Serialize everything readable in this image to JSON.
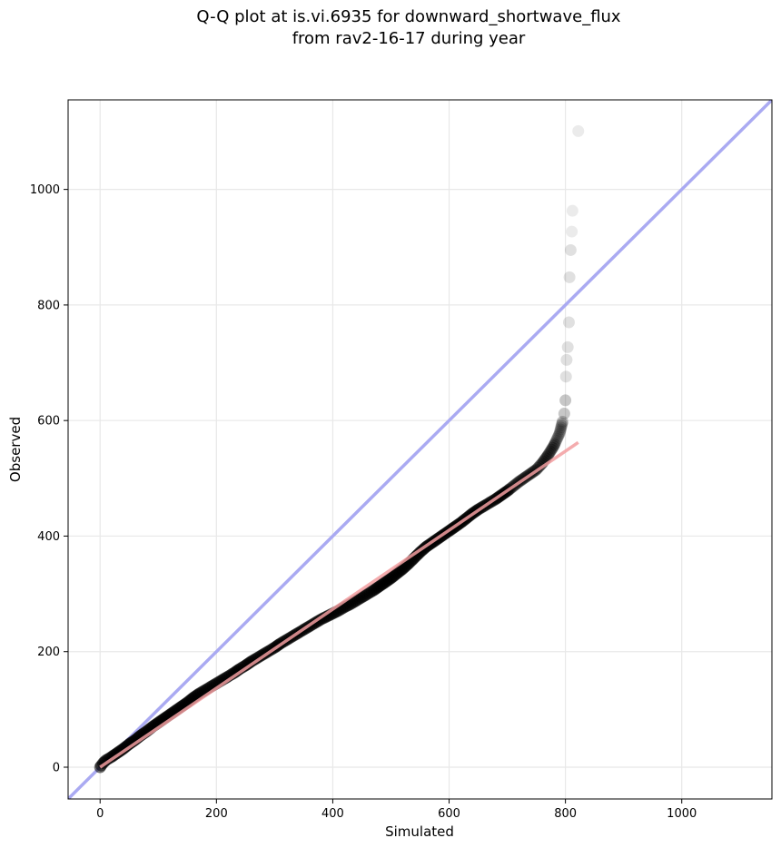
{
  "chart_data": {
    "type": "scatter",
    "title_line1": "Q-Q plot at is.vi.6935 for downward_shortwave_flux",
    "title_line2": "from rav2-16-17 during year",
    "xlabel": "Simulated",
    "ylabel": "Observed",
    "xlim": [
      -55,
      1155
    ],
    "ylim": [
      -55,
      1155
    ],
    "xticks": [
      0,
      200,
      400,
      600,
      800,
      1000
    ],
    "yticks": [
      0,
      200,
      400,
      600,
      800,
      1000
    ],
    "xtick_labels": [
      "0",
      "200",
      "400",
      "600",
      "800",
      "1000"
    ],
    "ytick_labels": [
      "0",
      "200",
      "400",
      "600",
      "800",
      "1000"
    ],
    "grid": true,
    "points": [
      [
        0,
        0
      ],
      [
        2,
        3
      ],
      [
        5,
        7
      ],
      [
        10,
        12
      ],
      [
        20,
        18
      ],
      [
        30,
        25
      ],
      [
        40,
        32
      ],
      [
        50,
        40
      ],
      [
        60,
        47
      ],
      [
        70,
        55
      ],
      [
        80,
        62
      ],
      [
        90,
        70
      ],
      [
        100,
        77
      ],
      [
        110,
        84
      ],
      [
        120,
        91
      ],
      [
        130,
        98
      ],
      [
        140,
        105
      ],
      [
        150,
        112
      ],
      [
        160,
        120
      ],
      [
        170,
        127
      ],
      [
        180,
        133
      ],
      [
        190,
        139
      ],
      [
        200,
        145
      ],
      [
        210,
        151
      ],
      [
        220,
        157
      ],
      [
        230,
        163
      ],
      [
        240,
        170
      ],
      [
        250,
        176
      ],
      [
        260,
        183
      ],
      [
        270,
        189
      ],
      [
        280,
        195
      ],
      [
        290,
        201
      ],
      [
        300,
        207
      ],
      [
        310,
        214
      ],
      [
        320,
        220
      ],
      [
        330,
        226
      ],
      [
        340,
        232
      ],
      [
        350,
        238
      ],
      [
        360,
        244
      ],
      [
        370,
        250
      ],
      [
        380,
        256
      ],
      [
        390,
        261
      ],
      [
        400,
        266
      ],
      [
        410,
        271
      ],
      [
        420,
        277
      ],
      [
        430,
        282
      ],
      [
        440,
        288
      ],
      [
        450,
        294
      ],
      [
        460,
        300
      ],
      [
        470,
        306
      ],
      [
        480,
        313
      ],
      [
        490,
        320
      ],
      [
        500,
        327
      ],
      [
        510,
        335
      ],
      [
        520,
        343
      ],
      [
        530,
        352
      ],
      [
        540,
        362
      ],
      [
        550,
        372
      ],
      [
        560,
        381
      ],
      [
        570,
        388
      ],
      [
        580,
        395
      ],
      [
        590,
        402
      ],
      [
        600,
        409
      ],
      [
        610,
        416
      ],
      [
        620,
        423
      ],
      [
        630,
        431
      ],
      [
        640,
        439
      ],
      [
        650,
        446
      ],
      [
        660,
        452
      ],
      [
        670,
        458
      ],
      [
        680,
        464
      ],
      [
        690,
        471
      ],
      [
        700,
        478
      ],
      [
        710,
        486
      ],
      [
        720,
        494
      ],
      [
        730,
        501
      ],
      [
        740,
        508
      ],
      [
        750,
        515
      ],
      [
        760,
        526
      ],
      [
        770,
        540
      ],
      [
        780,
        556
      ],
      [
        790,
        578
      ],
      [
        795,
        598
      ],
      [
        798,
        612
      ],
      [
        800,
        635
      ],
      [
        801,
        676
      ],
      [
        802,
        705
      ],
      [
        804,
        727
      ],
      [
        806,
        770
      ],
      [
        807,
        848
      ],
      [
        809,
        895
      ],
      [
        811,
        927
      ],
      [
        812,
        963
      ],
      [
        822,
        1101
      ]
    ],
    "reference_line": {
      "from": [
        -55,
        -55
      ],
      "to": [
        1155,
        1155
      ],
      "color": "#aaaaf2"
    },
    "fit_line": {
      "from": [
        0,
        0
      ],
      "to": [
        822,
        562
      ],
      "color": "#f29ea0"
    },
    "point_color": "#000000"
  }
}
